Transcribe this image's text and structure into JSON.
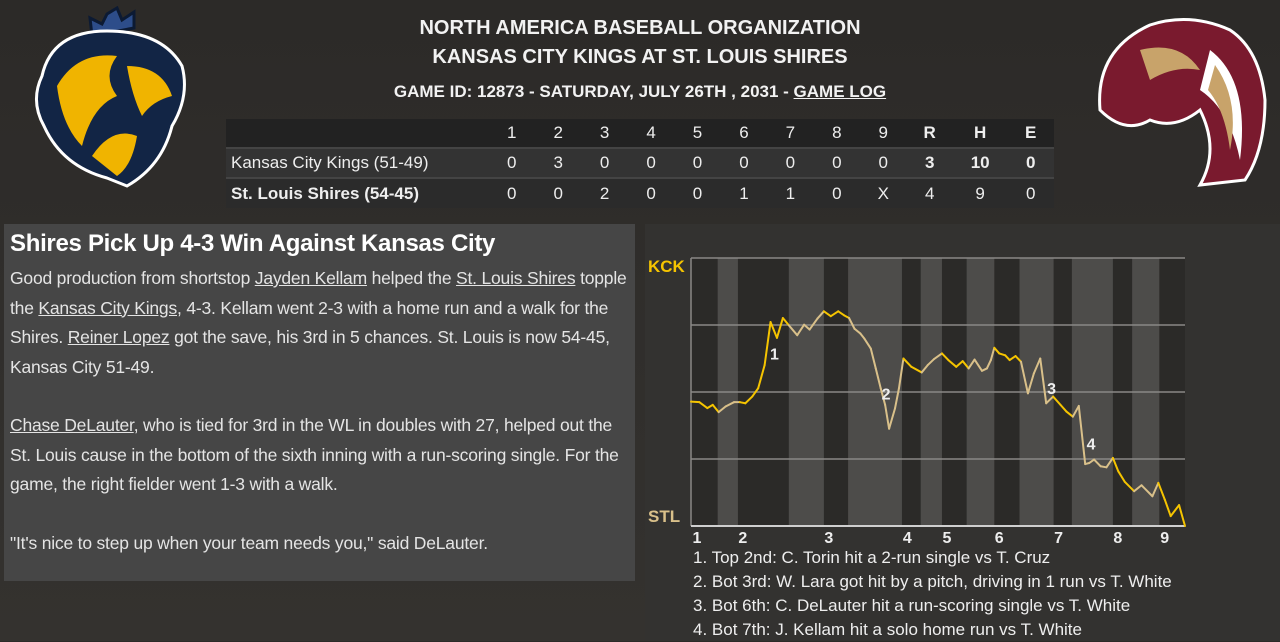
{
  "header": {
    "league": "NORTH AMERICA BASEBALL ORGANIZATION",
    "matchup": "KANSAS CITY KINGS AT ST. LOUIS SHIRES",
    "game_info": "GAME ID: 12873 - SATURDAY, JULY 26TH , 2031 - ",
    "game_log_link": "GAME LOG"
  },
  "logos": {
    "away": "Kansas City Kings lion logo",
    "home": "St. Louis Shires horse logo"
  },
  "boxscore": {
    "columns": [
      "1",
      "2",
      "3",
      "4",
      "5",
      "6",
      "7",
      "8",
      "9",
      "R",
      "H",
      "E"
    ],
    "rows": [
      {
        "team": "Kansas City Kings (51-49)",
        "innings": [
          "0",
          "3",
          "0",
          "0",
          "0",
          "0",
          "0",
          "0",
          "0"
        ],
        "r": "3",
        "h": "10",
        "e": "0"
      },
      {
        "team": "St. Louis Shires (54-45)",
        "innings": [
          "0",
          "0",
          "2",
          "0",
          "0",
          "1",
          "1",
          "0",
          "X"
        ],
        "r": "4",
        "h": "9",
        "e": "0"
      }
    ]
  },
  "article": {
    "headline": "Shires Pick Up 4-3 Win Against Kansas City",
    "paragraphs": [
      [
        {
          "t": "Good production from shortstop "
        },
        {
          "t": "Jayden Kellam",
          "link": true
        },
        {
          "t": " helped the "
        },
        {
          "t": "St. Louis Shires",
          "link": true
        },
        {
          "t": " topple the "
        },
        {
          "t": "Kansas City Kings",
          "link": true
        },
        {
          "t": ", 4-3. Kellam went 2-3 with a home run and a walk for the Shires. "
        },
        {
          "t": "Reiner Lopez",
          "link": true
        },
        {
          "t": " got the save, his 3rd in 5 chances. St. Louis is now 54-45, Kansas City 51-49."
        }
      ],
      [
        {
          "t": "Chase DeLauter",
          "link": true
        },
        {
          "t": ", who is tied for 3rd in the WL in doubles with 27, helped out the St. Louis cause in the bottom of the sixth inning with a run-scoring single. For the game, the right fielder went 1-3 with a walk."
        }
      ],
      [
        {
          "t": "\"It's nice to step up when your team needs you,\" said DeLauter."
        }
      ]
    ]
  },
  "chart_data": {
    "type": "line",
    "top_label": "KCK",
    "bottom_label": "STL",
    "top_color": "#f5c400",
    "bottom_color": "#d9c08a",
    "grid": true,
    "ylim": [
      0,
      100
    ],
    "xlim": [
      0,
      100
    ],
    "inning_ticks": [
      {
        "label": "1",
        "x": 1.2
      },
      {
        "label": "2",
        "x": 10.5
      },
      {
        "label": "3",
        "x": 27.9
      },
      {
        "label": "4",
        "x": 43.8
      },
      {
        "label": "5",
        "x": 51.8
      },
      {
        "label": "6",
        "x": 62.4
      },
      {
        "label": "7",
        "x": 74.4
      },
      {
        "label": "8",
        "x": 86.4
      },
      {
        "label": "9",
        "x": 95.9
      }
    ],
    "shaded_bands": [
      [
        5.4,
        9.5
      ],
      [
        19.8,
        26.9
      ],
      [
        31.8,
        42.7
      ],
      [
        46.5,
        50.8
      ],
      [
        55.8,
        61.4
      ],
      [
        66.5,
        73.4
      ],
      [
        77.1,
        85.4
      ],
      [
        89.3,
        94.8
      ]
    ],
    "points": [
      [
        0,
        46.4
      ],
      [
        1.7,
        46.2
      ],
      [
        3.3,
        44.0
      ],
      [
        4.4,
        45.2
      ],
      [
        5.6,
        42.5
      ],
      [
        7.0,
        44.6
      ],
      [
        8.7,
        46.2
      ],
      [
        9.9,
        46.2
      ],
      [
        11.0,
        45.8
      ],
      [
        12.4,
        48.3
      ],
      [
        13.6,
        51.4
      ],
      [
        14.9,
        60.0
      ],
      [
        16.1,
        76.1
      ],
      [
        17.4,
        70.2
      ],
      [
        18.6,
        77.6
      ],
      [
        19.8,
        74.9
      ],
      [
        21.5,
        71.2
      ],
      [
        22.9,
        75.1
      ],
      [
        24.0,
        73.3
      ],
      [
        25.6,
        77.4
      ],
      [
        26.9,
        80.1
      ],
      [
        28.3,
        78.3
      ],
      [
        29.8,
        80.1
      ],
      [
        31.0,
        78.6
      ],
      [
        32.0,
        77.6
      ],
      [
        33.1,
        73.6
      ],
      [
        34.3,
        71.8
      ],
      [
        35.1,
        69.9
      ],
      [
        36.4,
        66.2
      ],
      [
        37.4,
        58.8
      ],
      [
        38.4,
        51.4
      ],
      [
        39.3,
        45.2
      ],
      [
        40.1,
        36.3
      ],
      [
        41.3,
        43.9
      ],
      [
        42.1,
        51.4
      ],
      [
        43.0,
        62.5
      ],
      [
        44.6,
        59.4
      ],
      [
        46.7,
        57.3
      ],
      [
        47.9,
        60.0
      ],
      [
        49.2,
        62.3
      ],
      [
        50.8,
        64.4
      ],
      [
        52.1,
        61.9
      ],
      [
        53.7,
        59.4
      ],
      [
        55.0,
        61.5
      ],
      [
        56.2,
        58.8
      ],
      [
        57.4,
        62.1
      ],
      [
        58.9,
        57.9
      ],
      [
        59.9,
        58.8
      ],
      [
        60.7,
        61.9
      ],
      [
        61.4,
        66.5
      ],
      [
        62.4,
        64.4
      ],
      [
        63.6,
        63.7
      ],
      [
        64.5,
        61.9
      ],
      [
        65.7,
        63.4
      ],
      [
        66.8,
        61.3
      ],
      [
        68.2,
        49.5
      ],
      [
        69.4,
        56.9
      ],
      [
        70.7,
        62.5
      ],
      [
        71.9,
        45.8
      ],
      [
        73.3,
        48.3
      ],
      [
        74.8,
        45.2
      ],
      [
        76.0,
        42.7
      ],
      [
        77.3,
        40.8
      ],
      [
        78.5,
        44.8
      ],
      [
        79.8,
        23.1
      ],
      [
        80.6,
        23.5
      ],
      [
        81.6,
        24.8
      ],
      [
        82.9,
        22.3
      ],
      [
        84.1,
        21.9
      ],
      [
        85.4,
        25.4
      ],
      [
        86.5,
        20.4
      ],
      [
        87.8,
        16.5
      ],
      [
        89.7,
        13.0
      ],
      [
        91.2,
        15.2
      ],
      [
        93.4,
        11.1
      ],
      [
        94.6,
        16.1
      ],
      [
        95.9,
        9.9
      ],
      [
        97.1,
        3.7
      ],
      [
        98.8,
        7.8
      ],
      [
        100,
        0
      ]
    ],
    "markers": [
      {
        "label": "1",
        "x": 16.9,
        "y": 64.4
      },
      {
        "label": "2",
        "x": 39.5,
        "y": 49.5
      },
      {
        "label": "3",
        "x": 73.0,
        "y": 51.4
      },
      {
        "label": "4",
        "x": 81.0,
        "y": 30.7
      }
    ],
    "annotations": [
      "1. Top 2nd: C. Torin hit a 2-run single vs T. Cruz",
      "2. Bot 3rd: W. Lara got hit by a pitch, driving in 1 run vs T. White",
      "3. Bot 6th: C. DeLauter hit a run-scoring single vs T. White",
      "4. Bot 7th: J. Kellam hit a solo home run vs T. White"
    ]
  }
}
